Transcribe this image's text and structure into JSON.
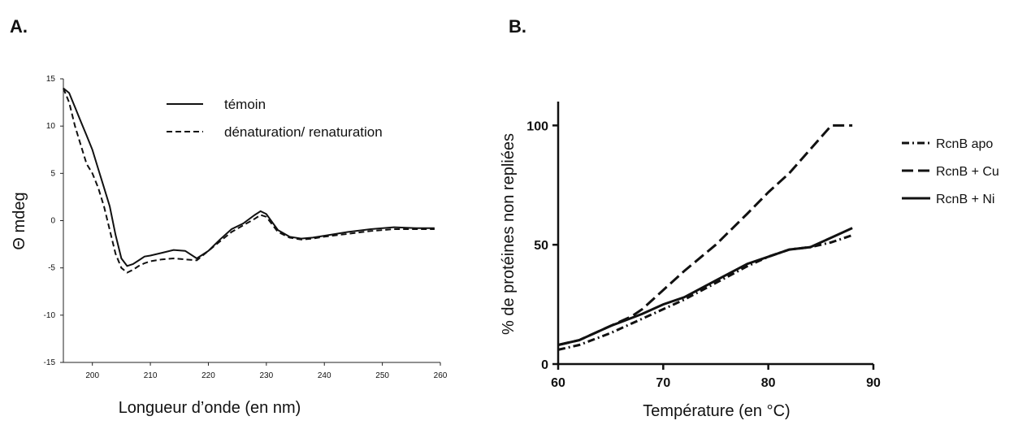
{
  "panels": {
    "a_label": "A.",
    "b_label": "B."
  },
  "chart_data": [
    {
      "type": "line",
      "xlabel": "Longueur d’onde (en nm)",
      "ylabel": "Θ mdeg",
      "xlim": [
        195,
        260
      ],
      "ylim": [
        -15,
        15
      ],
      "xticks": [
        200,
        210,
        220,
        230,
        240,
        250,
        260
      ],
      "yticks": [
        15,
        10,
        5,
        0,
        -5,
        -10,
        -15
      ],
      "grid": false,
      "legend_position": "top-right",
      "series": [
        {
          "name": "témoin",
          "style": "solid",
          "x": [
            195,
            196,
            197,
            198,
            199,
            200,
            201,
            202,
            203,
            204,
            205,
            206,
            207,
            208,
            209,
            210,
            212,
            214,
            216,
            218,
            220,
            222,
            224,
            226,
            228,
            229,
            230,
            232,
            234,
            236,
            238,
            240,
            244,
            248,
            252,
            256,
            259
          ],
          "y": [
            14,
            13.5,
            12,
            10.5,
            9,
            7.5,
            5.5,
            3.5,
            1.5,
            -1.5,
            -4,
            -4.8,
            -4.6,
            -4.2,
            -3.8,
            -3.7,
            -3.4,
            -3.1,
            -3.2,
            -4,
            -3.2,
            -2,
            -0.9,
            -0.3,
            0.6,
            1,
            0.7,
            -1,
            -1.7,
            -1.9,
            -1.8,
            -1.6,
            -1.2,
            -0.9,
            -0.7,
            -0.8,
            -0.8
          ]
        },
        {
          "name": "dénaturation/ renaturation",
          "style": "dashed",
          "x": [
            195,
            196,
            197,
            198,
            199,
            200,
            201,
            202,
            203,
            204,
            205,
            206,
            207,
            208,
            209,
            210,
            212,
            214,
            216,
            218,
            220,
            222,
            224,
            226,
            228,
            229,
            230,
            232,
            234,
            236,
            238,
            240,
            244,
            248,
            252,
            256,
            259
          ],
          "y": [
            14,
            12.5,
            10,
            8,
            6,
            5,
            3.5,
            1.5,
            -1,
            -3.5,
            -5,
            -5.5,
            -5.2,
            -4.8,
            -4.5,
            -4.3,
            -4.1,
            -4,
            -4.1,
            -4.2,
            -3.2,
            -2.2,
            -1.2,
            -0.5,
            0.2,
            0.6,
            0.4,
            -1.2,
            -1.8,
            -2,
            -1.9,
            -1.7,
            -1.4,
            -1.1,
            -0.9,
            -0.9,
            -0.9
          ]
        }
      ]
    },
    {
      "type": "line",
      "xlabel": "Température (en °C)",
      "ylabel": "% de protéines non repliées",
      "xlim": [
        60,
        90
      ],
      "ylim": [
        0,
        110
      ],
      "xticks": [
        60,
        70,
        80,
        90
      ],
      "yticks": [
        0,
        50,
        100
      ],
      "grid": false,
      "legend_position": "right",
      "series": [
        {
          "name": "RcnB apo",
          "style": "dashdot",
          "x": [
            60,
            62,
            65,
            68,
            70,
            72,
            75,
            78,
            80,
            82,
            84,
            86,
            88
          ],
          "y": [
            6,
            8,
            13,
            19,
            23,
            27,
            34,
            41,
            45,
            48,
            49,
            51,
            54
          ]
        },
        {
          "name": "RcnB + Cu",
          "style": "dashed",
          "x": [
            60,
            62,
            65,
            67,
            68,
            70,
            72,
            75,
            78,
            80,
            82,
            84,
            86,
            87,
            88
          ],
          "y": [
            8,
            10,
            16,
            20,
            23,
            31,
            39,
            50,
            63,
            72,
            80,
            90,
            100,
            100,
            100
          ]
        },
        {
          "name": "RcnB + Ni",
          "style": "solid",
          "x": [
            60,
            62,
            65,
            68,
            70,
            72,
            75,
            78,
            80,
            82,
            84,
            86,
            88
          ],
          "y": [
            8,
            10,
            16,
            21,
            25,
            28,
            35,
            42,
            45,
            48,
            49,
            53,
            57
          ]
        }
      ]
    }
  ]
}
